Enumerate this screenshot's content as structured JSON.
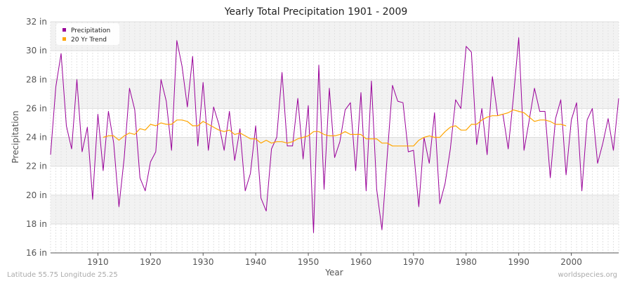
{
  "chart_data": {
    "type": "line",
    "title": "Yearly Total Precipitation 1901 - 2009",
    "xlabel": "Year",
    "ylabel": "Precipitation",
    "xlim": [
      1901,
      2009
    ],
    "ylim": [
      16,
      32
    ],
    "y_unit": "in",
    "x_ticks": [
      1910,
      1920,
      1930,
      1940,
      1950,
      1960,
      1970,
      1980,
      1990,
      2000
    ],
    "y_ticks": [
      16,
      18,
      20,
      22,
      24,
      26,
      28,
      30,
      32
    ],
    "y_tick_labels": [
      "16 in",
      "18 in",
      "20 in",
      "22 in",
      "24 in",
      "26 in",
      "28 in",
      "30 in",
      "32 in"
    ],
    "grid": true,
    "legend_position": "top-left",
    "series": [
      {
        "name": "Precipitation",
        "color": "#990099",
        "x": [
          1901,
          1902,
          1903,
          1904,
          1905,
          1906,
          1907,
          1908,
          1909,
          1910,
          1911,
          1912,
          1913,
          1914,
          1915,
          1916,
          1917,
          1918,
          1919,
          1920,
          1921,
          1922,
          1923,
          1924,
          1925,
          1926,
          1927,
          1928,
          1929,
          1930,
          1931,
          1932,
          1933,
          1934,
          1935,
          1936,
          1937,
          1938,
          1939,
          1940,
          1941,
          1942,
          1943,
          1944,
          1945,
          1946,
          1947,
          1948,
          1949,
          1950,
          1951,
          1952,
          1953,
          1954,
          1955,
          1956,
          1957,
          1958,
          1959,
          1960,
          1961,
          1962,
          1963,
          1964,
          1965,
          1966,
          1967,
          1968,
          1969,
          1970,
          1971,
          1972,
          1973,
          1974,
          1975,
          1976,
          1977,
          1978,
          1979,
          1980,
          1981,
          1982,
          1983,
          1984,
          1985,
          1986,
          1987,
          1988,
          1989,
          1990,
          1991,
          1992,
          1993,
          1994,
          1995,
          1996,
          1997,
          1998,
          1999,
          2000,
          2001,
          2002,
          2003,
          2004,
          2005,
          2006,
          2007,
          2008,
          2009
        ],
        "values": [
          22.8,
          27.5,
          29.8,
          24.8,
          23.2,
          28.0,
          23.0,
          24.7,
          19.7,
          25.6,
          21.7,
          25.8,
          23.6,
          19.2,
          22.6,
          27.4,
          25.9,
          21.2,
          20.3,
          22.3,
          23.0,
          28.0,
          26.5,
          23.1,
          30.7,
          28.9,
          26.1,
          29.6,
          23.4,
          27.8,
          23.1,
          26.1,
          24.9,
          23.1,
          25.8,
          22.4,
          24.6,
          20.3,
          21.5,
          24.8,
          19.8,
          18.9,
          23.2,
          24.0,
          28.5,
          23.4,
          23.4,
          26.7,
          22.5,
          26.2,
          17.4,
          29.0,
          20.4,
          27.4,
          22.6,
          23.7,
          25.9,
          26.4,
          21.7,
          27.1,
          20.3,
          27.9,
          20.4,
          17.6,
          22.7,
          27.6,
          26.5,
          26.4,
          23.0,
          23.1,
          19.2,
          24.0,
          22.2,
          25.7,
          19.4,
          20.8,
          23.2,
          26.6,
          26.0,
          30.3,
          29.9,
          23.5,
          26.0,
          22.8,
          28.2,
          25.5,
          25.6,
          23.2,
          26.8,
          30.9,
          23.1,
          25.2,
          27.4,
          25.8,
          25.8,
          21.2,
          25.3,
          26.6,
          21.4,
          25.2,
          26.4,
          20.3,
          25.2,
          26.0,
          22.2,
          23.6,
          25.3,
          23.1,
          26.7
        ]
      },
      {
        "name": "20 Yr Trend",
        "color": "#ffa500",
        "x": [
          1911,
          1912,
          1913,
          1914,
          1915,
          1916,
          1917,
          1918,
          1919,
          1920,
          1921,
          1922,
          1923,
          1924,
          1925,
          1926,
          1927,
          1928,
          1929,
          1930,
          1931,
          1932,
          1933,
          1934,
          1935,
          1936,
          1937,
          1938,
          1939,
          1940,
          1941,
          1942,
          1943,
          1944,
          1945,
          1946,
          1947,
          1948,
          1949,
          1950,
          1951,
          1952,
          1953,
          1954,
          1955,
          1956,
          1957,
          1958,
          1959,
          1960,
          1961,
          1962,
          1963,
          1964,
          1965,
          1966,
          1967,
          1968,
          1969,
          1970,
          1971,
          1972,
          1973,
          1974,
          1975,
          1976,
          1977,
          1978,
          1979,
          1980,
          1981,
          1982,
          1983,
          1984,
          1985,
          1986,
          1987,
          1988,
          1989,
          1990,
          1991,
          1992,
          1993,
          1994,
          1995,
          1996,
          1997,
          1998,
          1999
        ],
        "values": [
          24.0,
          24.1,
          24.1,
          23.8,
          24.1,
          24.3,
          24.2,
          24.6,
          24.5,
          24.9,
          24.8,
          25.0,
          24.9,
          24.9,
          25.2,
          25.2,
          25.1,
          24.8,
          24.8,
          25.1,
          24.9,
          24.7,
          24.5,
          24.4,
          24.5,
          24.2,
          24.3,
          24.1,
          23.9,
          23.9,
          23.6,
          23.8,
          23.6,
          23.7,
          23.7,
          23.6,
          23.7,
          23.9,
          24.0,
          24.1,
          24.4,
          24.4,
          24.2,
          24.1,
          24.1,
          24.2,
          24.4,
          24.2,
          24.2,
          24.2,
          23.9,
          23.9,
          23.9,
          23.6,
          23.6,
          23.4,
          23.4,
          23.4,
          23.4,
          23.4,
          23.8,
          24.0,
          24.1,
          24.0,
          24.0,
          24.4,
          24.7,
          24.8,
          24.5,
          24.5,
          24.9,
          24.9,
          25.2,
          25.4,
          25.5,
          25.5,
          25.6,
          25.7,
          25.9,
          25.8,
          25.7,
          25.4,
          25.1,
          25.2,
          25.2,
          25.1,
          24.9,
          24.9,
          24.8
        ]
      }
    ]
  },
  "footer": {
    "left": "Latitude 55.75 Longitude 25.25",
    "right": "worldspecies.org"
  }
}
